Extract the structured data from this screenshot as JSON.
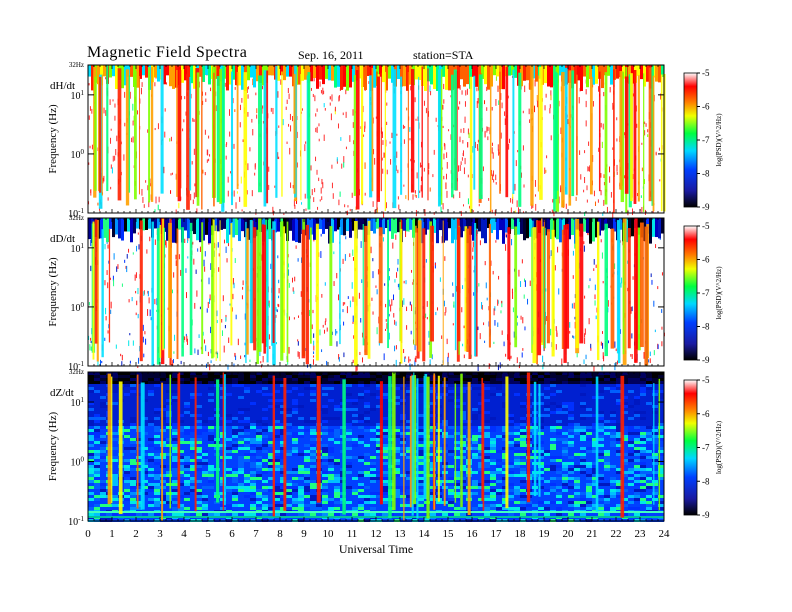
{
  "header": {
    "title": "Magnetic  Field  Spectra",
    "date": "Sep. 16, 2011",
    "station": "station=STA"
  },
  "chart_data": [
    {
      "type": "heatmap",
      "panel_label": "dH/dt",
      "ylabel": "Frequency  (Hz)",
      "y_scale": "log",
      "y_ticks": [
        "32Hz",
        "10^1",
        "10^0",
        "10^-1"
      ],
      "xlim": [
        0,
        24
      ],
      "colorbar": {
        "label": "log(PSD)(V^2/Hz)",
        "range": [
          -9,
          -5
        ],
        "ticks": [
          "-5",
          "-6",
          "-7",
          "-8",
          "-9"
        ],
        "colormap": "rainbow"
      },
      "background": "white / low power with intermittent broadband red-yellow bursts"
    },
    {
      "type": "heatmap",
      "panel_label": "dD/dt",
      "ylabel": "Frequency  (Hz)",
      "y_scale": "log",
      "y_ticks": [
        "32Hz",
        "10^1",
        "10^0",
        "10^-1"
      ],
      "xlim": [
        0,
        24
      ],
      "colorbar": {
        "label": "log(PSD)(V^2/Hz)",
        "range": [
          -9,
          -5
        ],
        "ticks": [
          "-5",
          "-6",
          "-7",
          "-8",
          "-9"
        ],
        "colormap": "rainbow"
      },
      "background": "blue / white mixture with broadband red-yellow bursts"
    },
    {
      "type": "heatmap",
      "panel_label": "dZ/dt",
      "ylabel": "Frequency  (Hz)",
      "y_scale": "log",
      "y_ticks": [
        "32Hz",
        "10^1",
        "10^0",
        "10^-1"
      ],
      "xlim": [
        0,
        24
      ],
      "colorbar": {
        "label": "log(PSD)(V^2/Hz)",
        "range": [
          -9,
          -5
        ],
        "ticks": [
          "-5",
          "-6",
          "-7",
          "-8",
          "-9"
        ],
        "colormap": "rainbow"
      },
      "background": "dark blue / cyan noise floor with sparse vertical bursts"
    }
  ],
  "x_axis": {
    "label": "Universal Time",
    "ticks": [
      "0",
      "1",
      "2",
      "3",
      "4",
      "5",
      "6",
      "7",
      "8",
      "9",
      "10",
      "11",
      "12",
      "13",
      "14",
      "15",
      "16",
      "17",
      "18",
      "19",
      "20",
      "21",
      "22",
      "23",
      "24"
    ]
  }
}
